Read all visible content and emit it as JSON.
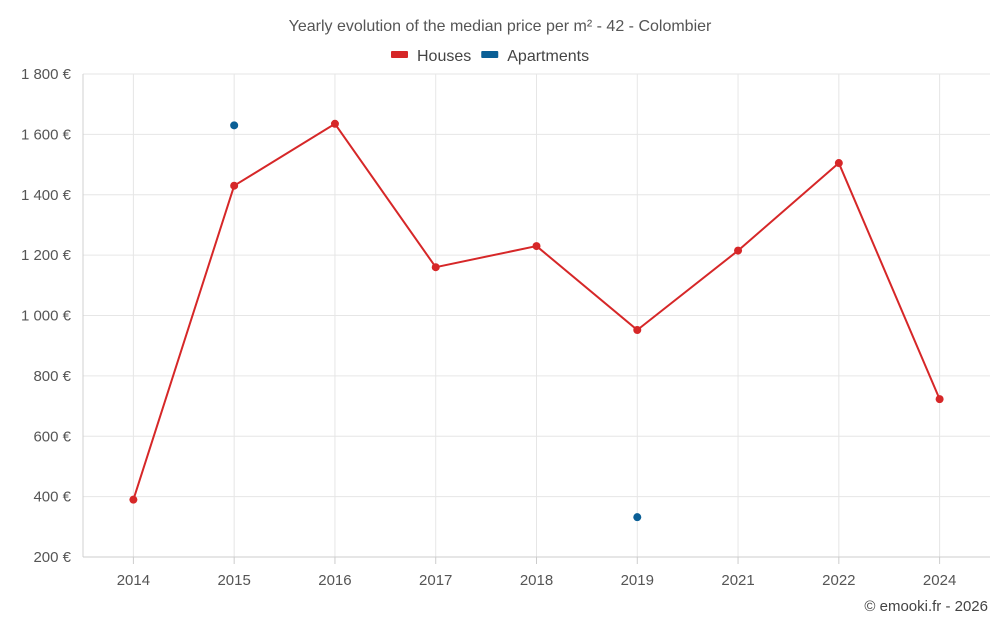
{
  "chart_data": {
    "type": "line",
    "title": "Yearly evolution of the median price per m² - 42 - Colombier",
    "categories": [
      "2014",
      "2015",
      "2016",
      "2017",
      "2018",
      "2019",
      "2021",
      "2022",
      "2024"
    ],
    "ylim": [
      200,
      1800
    ],
    "yticks": [
      200,
      400,
      600,
      800,
      1000,
      1200,
      1400,
      1600,
      1800
    ],
    "ytick_labels": [
      "200 €",
      "400 €",
      "600 €",
      "800 €",
      "1 000 €",
      "1 200 €",
      "1 400 €",
      "1 600 €",
      "1 800 €"
    ],
    "grid": true,
    "legend_position": "top-center",
    "series": [
      {
        "name": "Houses",
        "color": "#d62728",
        "values": [
          390,
          1430,
          1635,
          1160,
          1230,
          952,
          1215,
          1505,
          723
        ]
      },
      {
        "name": "Apartments",
        "color": "#0a5f96",
        "values": [
          null,
          1630,
          null,
          null,
          null,
          332,
          null,
          null,
          null
        ]
      }
    ]
  },
  "credit": "© emooki.fr - 2026"
}
